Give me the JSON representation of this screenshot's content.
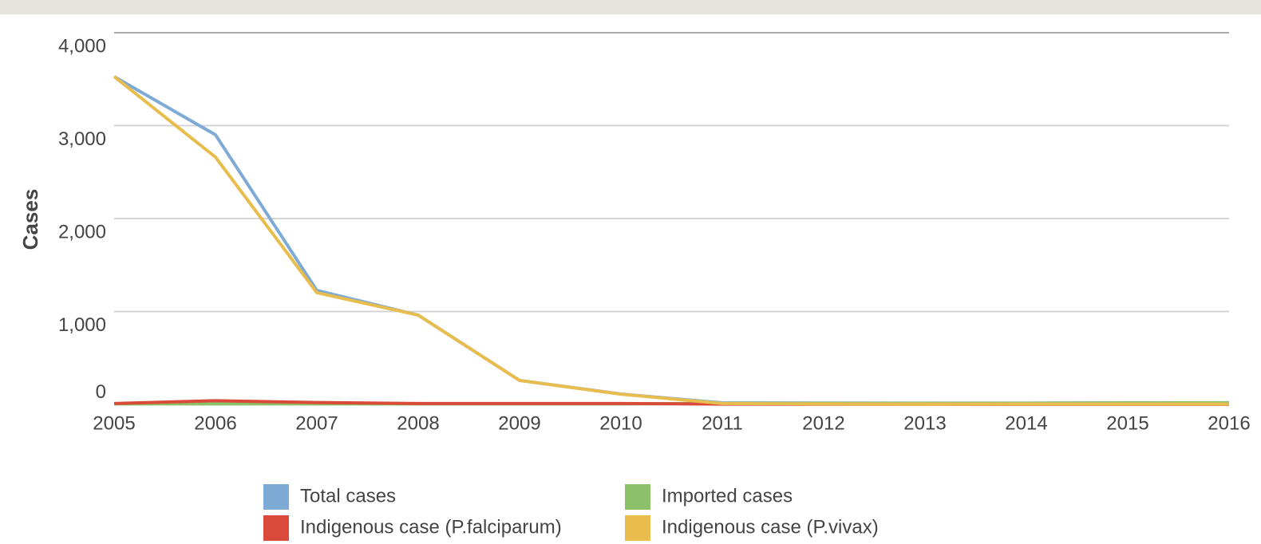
{
  "chart_data": {
    "type": "line",
    "y_label": "Cases",
    "categories": [
      "2005",
      "2006",
      "2007",
      "2008",
      "2009",
      "2010",
      "2011",
      "2012",
      "2013",
      "2014",
      "2015",
      "2016"
    ],
    "series": [
      {
        "name": "Total cases",
        "color": "#7eaad6",
        "values": [
          3528,
          2901,
          1227,
          961,
          258,
          112,
          17,
          15,
          14,
          14,
          17,
          18
        ]
      },
      {
        "name": "Imported cases",
        "color": "#8cc06b",
        "values": [
          5,
          5,
          5,
          5,
          5,
          5,
          12,
          12,
          12,
          13,
          16,
          17
        ]
      },
      {
        "name": "Indigenous case (P.falciparum)",
        "color": "#d94a3a",
        "values": [
          10,
          40,
          20,
          10,
          10,
          10,
          3,
          2,
          2,
          1,
          1,
          1
        ]
      },
      {
        "name": "Indigenous case (P.vivax)",
        "color": "#e8bd4d",
        "values": [
          3528,
          2661,
          1202,
          961,
          258,
          110,
          10,
          5,
          4,
          4,
          4,
          4
        ]
      }
    ],
    "ylim": [
      0,
      4000
    ],
    "yticks": [
      0,
      {
        "value": 1000,
        "label": "1,000"
      },
      {
        "value": 2000,
        "label": "2,000"
      },
      {
        "value": 3000,
        "label": "3,000"
      },
      {
        "value": 4000,
        "label": "4,000"
      }
    ],
    "grid": true
  }
}
